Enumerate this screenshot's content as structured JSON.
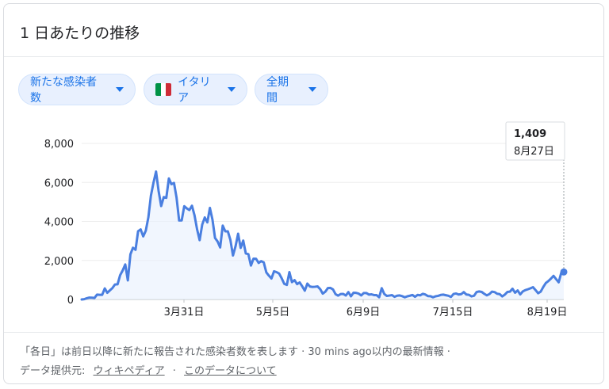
{
  "card": {
    "title": "1 日あたりの推移"
  },
  "filters": {
    "metric_label": "新たな感染者数",
    "country_label": "イタリア",
    "period_label": "全期間"
  },
  "flag_colors": [
    "#009246",
    "#ffffff",
    "#ce2b37"
  ],
  "accent_color": "#4a7fe0",
  "chart_data": {
    "type": "line",
    "ylim": [
      0,
      8000
    ],
    "yticks": [
      0,
      2000,
      4000,
      6000,
      8000
    ],
    "ytick_labels": [
      "0",
      "2,000",
      "4,000",
      "6,000",
      "8,000"
    ],
    "xtick_labels": [
      "3月31日",
      "5月5日",
      "6月9日",
      "7月15日",
      "8月19日"
    ],
    "tooltip": {
      "value": "1,409",
      "date": "8月27日"
    },
    "series": [
      {
        "values": [
          0,
          14,
          64,
          97,
          93,
          78,
          250,
          238,
          240,
          566,
          342,
          466,
          587,
          769,
          778,
          1247,
          1492,
          1797,
          977,
          2313,
          2651,
          2547,
          3497,
          3590,
          3233,
          3526,
          4207,
          5322,
          5986,
          6557,
          5560,
          4789,
          5249,
          5210,
          6203,
          5909,
          5974,
          5217,
          4050,
          4053,
          4782,
          4668,
          4585,
          4805,
          4316,
          3599,
          3039,
          3836,
          4204,
          3951,
          4694,
          4092,
          3153,
          2972,
          2667,
          3786,
          3493,
          3491,
          3047,
          2256,
          2729,
          3370,
          2646,
          3021,
          2357,
          2324,
          1739,
          2091,
          2086,
          1872,
          1965,
          1900,
          1389,
          1221,
          1075,
          1444,
          1401,
          1327,
          1083,
          802,
          744,
          1402,
          888,
          992,
          789,
          875,
          675,
          451,
          813,
          665,
          642,
          652,
          669,
          531,
          300,
          397,
          584,
          593,
          516,
          270,
          197,
          280,
          283,
          202,
          379,
          163,
          346,
          338,
          301,
          210,
          328,
          332,
          251,
          264,
          224,
          221,
          113,
          577,
          282,
          182,
          201,
          223,
          138,
          192,
          208,
          169,
          114,
          163,
          193,
          229,
          138,
          234,
          212,
          289,
          255,
          175,
          169,
          114,
          162,
          186,
          232,
          249,
          218,
          190,
          129,
          282,
          306,
          252,
          274,
          379,
          254,
          239,
          159,
          190,
          384,
          412,
          386,
          289,
          212,
          276,
          402,
          379,
          295,
          275,
          159,
          250,
          384,
          402,
          552,
          347,
          463,
          259,
          412,
          481,
          523,
          574,
          629,
          479,
          320,
          403,
          642,
          845,
          947,
          1071,
          1210,
          1045,
          878,
          1367,
          1409
        ]
      }
    ]
  },
  "footer": {
    "note": "「各日」は前日以降に新たに報告された感染者数を表します · 30 mins ago以内の最新情報 ·",
    "source_label": "データ提供元:",
    "source_link": "ウィキペディア",
    "separator": "·",
    "about_link": "このデータについて"
  }
}
